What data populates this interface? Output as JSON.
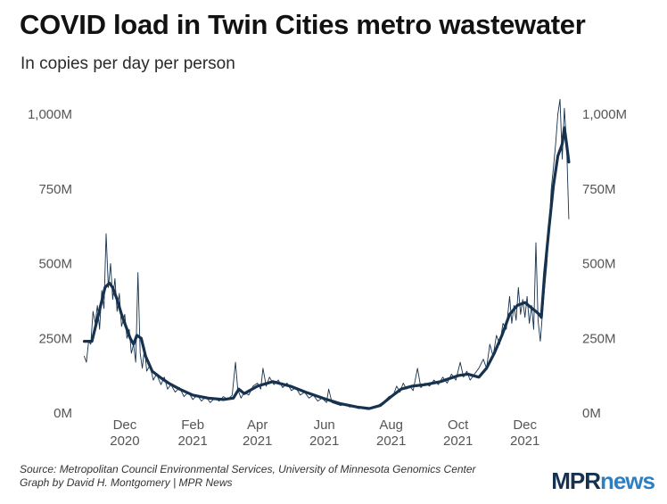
{
  "title": "COVID load in Twin Cities metro wastewater",
  "subtitle": "In copies per day per person",
  "source_line1": "Source: Metropolitan Council Environmental Services, University of Minnesota Genomics Center",
  "source_line2": "Graph by David H. Montgomery | MPR News",
  "logo": {
    "part1": "MPR",
    "part2": "news",
    "color1": "#16324f",
    "color2": "#2e7fc1"
  },
  "chart_data": {
    "type": "line",
    "title": "COVID load in Twin Cities metro wastewater",
    "subtitle": "In copies per day per person",
    "xlabel": "",
    "ylabel": "",
    "ylim": [
      0,
      1000
    ],
    "xlim": [
      "2020-10-23",
      "2022-01-15"
    ],
    "y_unit": "M copies per day per person",
    "grid": false,
    "legend": "none",
    "y_ticks": [
      {
        "value": 0,
        "label": "0M"
      },
      {
        "value": 250,
        "label": "250M"
      },
      {
        "value": 500,
        "label": "500M"
      },
      {
        "value": 750,
        "label": "750M"
      },
      {
        "value": 1000,
        "label": "1,000M"
      }
    ],
    "x_ticks": [
      {
        "date": "2020-12-01",
        "line1": "Dec",
        "line2": "2020"
      },
      {
        "date": "2021-02-01",
        "line1": "Feb",
        "line2": "2021"
      },
      {
        "date": "2021-04-01",
        "line1": "Apr",
        "line2": "2021"
      },
      {
        "date": "2021-06-01",
        "line1": "Jun",
        "line2": "2021"
      },
      {
        "date": "2021-08-01",
        "line1": "Aug",
        "line2": "2021"
      },
      {
        "date": "2021-10-01",
        "line1": "Oct",
        "line2": "2021"
      },
      {
        "date": "2021-12-01",
        "line1": "Dec",
        "line2": "2021"
      }
    ],
    "series": [
      {
        "style": "thin",
        "color": "#16324f",
        "points": [
          [
            "2020-10-25",
            190
          ],
          [
            "2020-10-27",
            170
          ],
          [
            "2020-10-29",
            240
          ],
          [
            "2020-10-31",
            230
          ],
          [
            "2020-11-02",
            340
          ],
          [
            "2020-11-04",
            300
          ],
          [
            "2020-11-06",
            360
          ],
          [
            "2020-11-08",
            280
          ],
          [
            "2020-11-10",
            410
          ],
          [
            "2020-11-12",
            350
          ],
          [
            "2020-11-14",
            600
          ],
          [
            "2020-11-16",
            420
          ],
          [
            "2020-11-18",
            500
          ],
          [
            "2020-11-20",
            380
          ],
          [
            "2020-11-22",
            450
          ],
          [
            "2020-11-24",
            340
          ],
          [
            "2020-11-26",
            400
          ],
          [
            "2020-11-28",
            290
          ],
          [
            "2020-12-01",
            330
          ],
          [
            "2020-12-03",
            250
          ],
          [
            "2020-12-05",
            280
          ],
          [
            "2020-12-07",
            200
          ],
          [
            "2020-12-09",
            230
          ],
          [
            "2020-12-11",
            170
          ],
          [
            "2020-12-13",
            470
          ],
          [
            "2020-12-15",
            200
          ],
          [
            "2020-12-17",
            150
          ],
          [
            "2020-12-19",
            220
          ],
          [
            "2020-12-21",
            140
          ],
          [
            "2020-12-24",
            160
          ],
          [
            "2020-12-27",
            110
          ],
          [
            "2020-12-30",
            130
          ],
          [
            "2021-01-03",
            95
          ],
          [
            "2021-01-06",
            120
          ],
          [
            "2021-01-09",
            80
          ],
          [
            "2021-01-12",
            95
          ],
          [
            "2021-01-16",
            70
          ],
          [
            "2021-01-20",
            85
          ],
          [
            "2021-01-24",
            55
          ],
          [
            "2021-01-28",
            70
          ],
          [
            "2021-02-01",
            45
          ],
          [
            "2021-02-05",
            60
          ],
          [
            "2021-02-09",
            40
          ],
          [
            "2021-02-13",
            55
          ],
          [
            "2021-02-17",
            35
          ],
          [
            "2021-02-21",
            50
          ],
          [
            "2021-02-25",
            40
          ],
          [
            "2021-03-01",
            55
          ],
          [
            "2021-03-05",
            45
          ],
          [
            "2021-03-09",
            60
          ],
          [
            "2021-03-12",
            170
          ],
          [
            "2021-03-14",
            80
          ],
          [
            "2021-03-17",
            50
          ],
          [
            "2021-03-20",
            70
          ],
          [
            "2021-03-24",
            60
          ],
          [
            "2021-03-28",
            90
          ],
          [
            "2021-04-01",
            100
          ],
          [
            "2021-04-04",
            80
          ],
          [
            "2021-04-06",
            150
          ],
          [
            "2021-04-09",
            90
          ],
          [
            "2021-04-12",
            120
          ],
          [
            "2021-04-16",
            95
          ],
          [
            "2021-04-20",
            110
          ],
          [
            "2021-04-24",
            85
          ],
          [
            "2021-04-28",
            100
          ],
          [
            "2021-05-02",
            75
          ],
          [
            "2021-05-06",
            85
          ],
          [
            "2021-05-10",
            60
          ],
          [
            "2021-05-14",
            70
          ],
          [
            "2021-05-18",
            50
          ],
          [
            "2021-05-22",
            60
          ],
          [
            "2021-05-26",
            40
          ],
          [
            "2021-05-30",
            50
          ],
          [
            "2021-06-03",
            35
          ],
          [
            "2021-06-05",
            80
          ],
          [
            "2021-06-08",
            35
          ],
          [
            "2021-06-12",
            30
          ],
          [
            "2021-06-16",
            25
          ],
          [
            "2021-06-20",
            30
          ],
          [
            "2021-06-24",
            20
          ],
          [
            "2021-06-28",
            22
          ],
          [
            "2021-07-02",
            15
          ],
          [
            "2021-07-06",
            18
          ],
          [
            "2021-07-10",
            12
          ],
          [
            "2021-07-14",
            15
          ],
          [
            "2021-07-18",
            20
          ],
          [
            "2021-07-22",
            30
          ],
          [
            "2021-07-26",
            40
          ],
          [
            "2021-07-30",
            55
          ],
          [
            "2021-08-03",
            60
          ],
          [
            "2021-08-06",
            90
          ],
          [
            "2021-08-09",
            70
          ],
          [
            "2021-08-12",
            100
          ],
          [
            "2021-08-15",
            80
          ],
          [
            "2021-08-18",
            90
          ],
          [
            "2021-08-21",
            75
          ],
          [
            "2021-08-25",
            150
          ],
          [
            "2021-08-28",
            85
          ],
          [
            "2021-09-01",
            100
          ],
          [
            "2021-09-05",
            90
          ],
          [
            "2021-09-09",
            110
          ],
          [
            "2021-09-13",
            95
          ],
          [
            "2021-09-17",
            120
          ],
          [
            "2021-09-21",
            100
          ],
          [
            "2021-09-25",
            130
          ],
          [
            "2021-09-29",
            110
          ],
          [
            "2021-10-03",
            170
          ],
          [
            "2021-10-06",
            120
          ],
          [
            "2021-10-09",
            140
          ],
          [
            "2021-10-12",
            110
          ],
          [
            "2021-10-16",
            130
          ],
          [
            "2021-10-20",
            150
          ],
          [
            "2021-10-24",
            180
          ],
          [
            "2021-10-27",
            150
          ],
          [
            "2021-10-30",
            230
          ],
          [
            "2021-11-02",
            190
          ],
          [
            "2021-11-05",
            260
          ],
          [
            "2021-11-08",
            230
          ],
          [
            "2021-11-11",
            300
          ],
          [
            "2021-11-14",
            280
          ],
          [
            "2021-11-17",
            390
          ],
          [
            "2021-11-19",
            300
          ],
          [
            "2021-11-21",
            360
          ],
          [
            "2021-11-23",
            310
          ],
          [
            "2021-11-25",
            420
          ],
          [
            "2021-11-27",
            330
          ],
          [
            "2021-11-29",
            380
          ],
          [
            "2021-12-01",
            320
          ],
          [
            "2021-12-03",
            390
          ],
          [
            "2021-12-05",
            300
          ],
          [
            "2021-12-07",
            360
          ],
          [
            "2021-12-09",
            280
          ],
          [
            "2021-12-11",
            570
          ],
          [
            "2021-12-13",
            310
          ],
          [
            "2021-12-15",
            240
          ],
          [
            "2021-12-17",
            330
          ],
          [
            "2021-12-19",
            420
          ],
          [
            "2021-12-21",
            500
          ],
          [
            "2021-12-23",
            620
          ],
          [
            "2021-12-25",
            750
          ],
          [
            "2021-12-27",
            820
          ],
          [
            "2021-12-29",
            900
          ],
          [
            "2021-12-31",
            1000
          ],
          [
            "2022-01-02",
            1050
          ],
          [
            "2022-01-04",
            850
          ],
          [
            "2022-01-06",
            1020
          ],
          [
            "2022-01-08",
            900
          ],
          [
            "2022-01-10",
            650
          ]
        ]
      },
      {
        "style": "thick",
        "color": "#16324f",
        "points": [
          [
            "2020-10-25",
            240
          ],
          [
            "2020-11-01",
            240
          ],
          [
            "2020-11-05",
            300
          ],
          [
            "2020-11-09",
            360
          ],
          [
            "2020-11-13",
            420
          ],
          [
            "2020-11-17",
            435
          ],
          [
            "2020-11-20",
            420
          ],
          [
            "2020-11-24",
            380
          ],
          [
            "2020-11-28",
            330
          ],
          [
            "2020-12-02",
            290
          ],
          [
            "2020-12-06",
            250
          ],
          [
            "2020-12-09",
            230
          ],
          [
            "2020-12-12",
            260
          ],
          [
            "2020-12-16",
            250
          ],
          [
            "2020-12-20",
            190
          ],
          [
            "2020-12-26",
            140
          ],
          [
            "2021-01-02",
            120
          ],
          [
            "2021-01-10",
            100
          ],
          [
            "2021-01-20",
            80
          ],
          [
            "2021-02-01",
            60
          ],
          [
            "2021-02-15",
            50
          ],
          [
            "2021-03-01",
            45
          ],
          [
            "2021-03-10",
            50
          ],
          [
            "2021-03-15",
            80
          ],
          [
            "2021-03-20",
            65
          ],
          [
            "2021-04-01",
            90
          ],
          [
            "2021-04-15",
            105
          ],
          [
            "2021-05-01",
            90
          ],
          [
            "2021-05-15",
            70
          ],
          [
            "2021-06-01",
            48
          ],
          [
            "2021-06-15",
            32
          ],
          [
            "2021-07-01",
            20
          ],
          [
            "2021-07-12",
            15
          ],
          [
            "2021-07-22",
            25
          ],
          [
            "2021-08-01",
            55
          ],
          [
            "2021-08-10",
            80
          ],
          [
            "2021-08-20",
            90
          ],
          [
            "2021-09-01",
            95
          ],
          [
            "2021-09-15",
            105
          ],
          [
            "2021-10-01",
            125
          ],
          [
            "2021-10-10",
            130
          ],
          [
            "2021-10-20",
            120
          ],
          [
            "2021-10-27",
            150
          ],
          [
            "2021-11-03",
            200
          ],
          [
            "2021-11-10",
            260
          ],
          [
            "2021-11-17",
            330
          ],
          [
            "2021-11-24",
            360
          ],
          [
            "2021-12-01",
            370
          ],
          [
            "2021-12-06",
            355
          ],
          [
            "2021-12-11",
            340
          ],
          [
            "2021-12-14",
            330
          ],
          [
            "2021-12-16",
            320
          ],
          [
            "2021-12-19",
            470
          ],
          [
            "2021-12-23",
            620
          ],
          [
            "2021-12-27",
            760
          ],
          [
            "2021-12-31",
            860
          ],
          [
            "2022-01-04",
            900
          ],
          [
            "2022-01-06",
            955
          ],
          [
            "2022-01-08",
            900
          ],
          [
            "2022-01-10",
            840
          ]
        ]
      }
    ]
  }
}
